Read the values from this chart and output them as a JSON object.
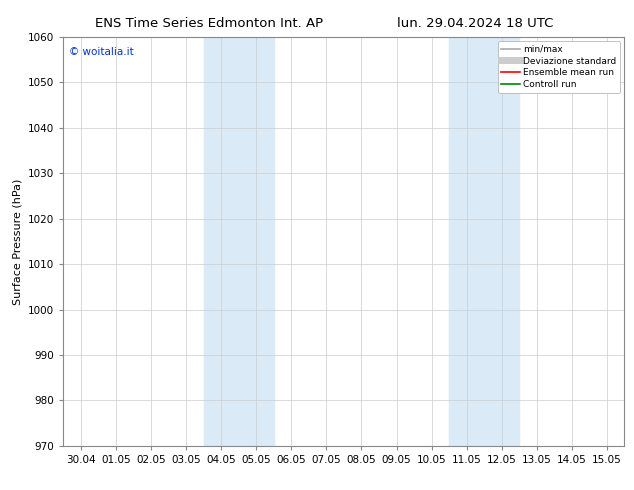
{
  "title_left": "ENS Time Series Edmonton Int. AP",
  "title_right": "lun. 29.04.2024 18 UTC",
  "ylabel": "Surface Pressure (hPa)",
  "ylim": [
    970,
    1060
  ],
  "yticks": [
    970,
    980,
    990,
    1000,
    1010,
    1020,
    1030,
    1040,
    1050,
    1060
  ],
  "xtick_labels": [
    "30.04",
    "01.05",
    "02.05",
    "03.05",
    "04.05",
    "05.05",
    "06.05",
    "07.05",
    "08.05",
    "09.05",
    "10.05",
    "11.05",
    "12.05",
    "13.05",
    "14.05",
    "15.05"
  ],
  "shade_bands": [
    {
      "xmin": 4,
      "xmax": 6,
      "color": "#daeaf7"
    },
    {
      "xmin": 11,
      "xmax": 13,
      "color": "#daeaf7"
    }
  ],
  "watermark": "© woitalia.it",
  "watermark_color": "#0033cc",
  "legend_entries": [
    {
      "label": "min/max",
      "color": "#aaaaaa",
      "lw": 1.2
    },
    {
      "label": "Deviazione standard",
      "color": "#cccccc",
      "lw": 5
    },
    {
      "label": "Ensemble mean run",
      "color": "#ff0000",
      "lw": 1.2
    },
    {
      "label": "Controll run",
      "color": "#008800",
      "lw": 1.2
    }
  ],
  "background_color": "#ffffff",
  "grid_color": "#cccccc",
  "title_fontsize": 9.5,
  "axis_fontsize": 8,
  "tick_fontsize": 7.5,
  "watermark_fontsize": 7.5,
  "legend_fontsize": 6.5
}
